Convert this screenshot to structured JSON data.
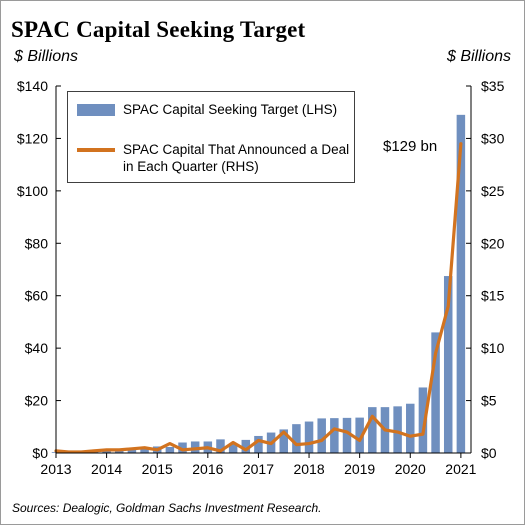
{
  "title": "SPAC Capital Seeking Target",
  "left_unit": "$ Billions",
  "right_unit": "$ Billions",
  "sources": "Sources: Dealogic, Goldman Sachs Investment Research.",
  "annotation": "$129 bn",
  "colors": {
    "bar": "#6f8fbf",
    "line": "#d2731f",
    "axis": "#000000"
  },
  "chart_data": {
    "type": "bar",
    "title": "SPAC Capital Seeking Target",
    "x_range": [
      2013,
      2021.2
    ],
    "x_ticks": [
      "2013",
      "2014",
      "2015",
      "2016",
      "2017",
      "2018",
      "2019",
      "2020",
      "2021"
    ],
    "ylim_left": [
      0,
      140
    ],
    "yticks_left": [
      "$0",
      "$20",
      "$40",
      "$60",
      "$80",
      "$100",
      "$120",
      "$140"
    ],
    "ylim_right": [
      0,
      35
    ],
    "yticks_right": [
      "$0",
      "$5",
      "$10",
      "$15",
      "$20",
      "$25",
      "$30",
      "$35"
    ],
    "grid": false,
    "legend_position": "top-left",
    "series": [
      {
        "name": "SPAC Capital Seeking Target (LHS)",
        "type": "bar",
        "axis": "left",
        "x": [
          2013.0,
          2013.25,
          2013.5,
          2013.75,
          2014.0,
          2014.25,
          2014.5,
          2014.75,
          2015.0,
          2015.25,
          2015.5,
          2015.75,
          2016.0,
          2016.25,
          2016.5,
          2016.75,
          2017.0,
          2017.25,
          2017.5,
          2017.75,
          2018.0,
          2018.25,
          2018.5,
          2018.75,
          2019.0,
          2019.25,
          2019.5,
          2019.75,
          2020.0,
          2020.25,
          2020.5,
          2020.75,
          2021.0
        ],
        "values": [
          0.3,
          0.4,
          0.6,
          0.9,
          1.0,
          1.4,
          1.5,
          2.0,
          2.5,
          2.3,
          4.0,
          4.4,
          4.4,
          5.2,
          3.6,
          5.0,
          6.5,
          7.8,
          9.0,
          11.0,
          12.0,
          13.2,
          13.3,
          13.4,
          13.5,
          17.5,
          17.5,
          17.8,
          18.8,
          25.0,
          46.0,
          67.5,
          129.0
        ]
      },
      {
        "name": "SPAC Capital That Announced a Deal in Each Quarter (RHS)",
        "type": "line",
        "axis": "right",
        "x": [
          2013.0,
          2013.25,
          2013.5,
          2013.75,
          2014.0,
          2014.25,
          2014.5,
          2014.75,
          2015.0,
          2015.25,
          2015.5,
          2015.75,
          2016.0,
          2016.25,
          2016.5,
          2016.75,
          2017.0,
          2017.25,
          2017.5,
          2017.75,
          2018.0,
          2018.25,
          2018.5,
          2018.75,
          2019.0,
          2019.25,
          2019.5,
          2019.75,
          2020.0,
          2020.25,
          2020.5,
          2020.75,
          2021.0
        ],
        "values": [
          0.2,
          0.1,
          0.1,
          0.2,
          0.3,
          0.3,
          0.4,
          0.5,
          0.3,
          0.9,
          0.3,
          0.4,
          0.5,
          0.2,
          1.0,
          0.3,
          1.2,
          0.9,
          2.0,
          0.8,
          0.9,
          1.2,
          2.3,
          2.0,
          1.2,
          3.5,
          2.2,
          2.0,
          1.6,
          1.8,
          9.5,
          14.0,
          29.5
        ]
      }
    ]
  }
}
